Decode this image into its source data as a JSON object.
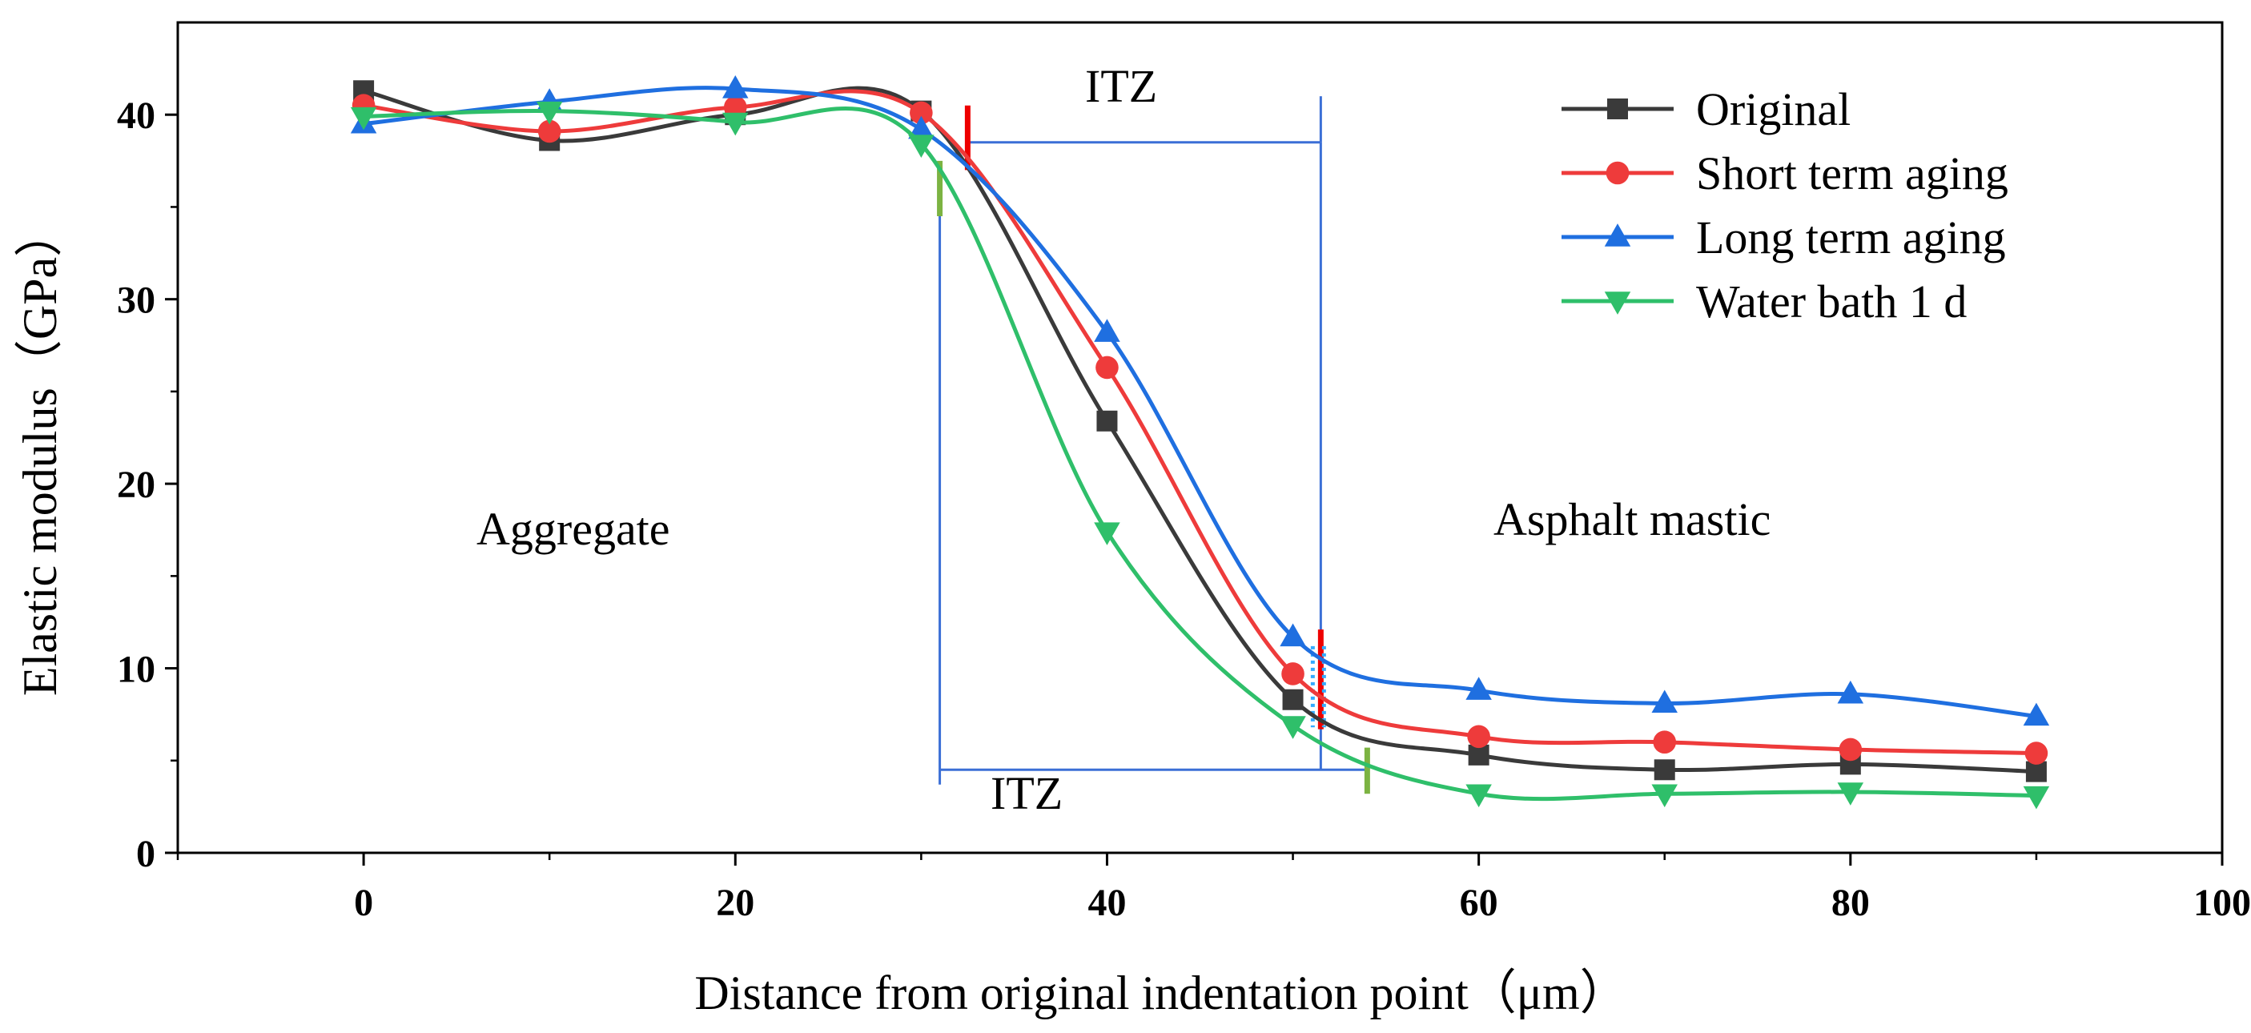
{
  "chart_data": {
    "type": "line",
    "title": "",
    "xlabel": "Distance from original indentation point（μm）",
    "ylabel": "Elastic modulus（GPa）",
    "xlim": [
      -10,
      100
    ],
    "ylim": [
      0,
      45
    ],
    "xticks": [
      0,
      20,
      40,
      60,
      80,
      100
    ],
    "yticks": [
      0,
      10,
      20,
      30,
      40
    ],
    "x": [
      0,
      10,
      20,
      30,
      40,
      50,
      60,
      70,
      80,
      90
    ],
    "series": [
      {
        "name": "Original",
        "color": "#3a3a3a",
        "marker": "square",
        "values": [
          41.3,
          38.6,
          40.0,
          40.2,
          23.4,
          8.3,
          5.3,
          4.5,
          4.8,
          4.4
        ]
      },
      {
        "name": "Short term aging",
        "color": "#ee3b3b",
        "marker": "circle",
        "values": [
          40.5,
          39.1,
          40.4,
          40.1,
          26.3,
          9.7,
          6.3,
          6.0,
          5.6,
          5.4
        ]
      },
      {
        "name": "Long term aging",
        "color": "#1f6fe0",
        "marker": "triangle-up",
        "values": [
          39.5,
          40.7,
          41.4,
          39.2,
          28.2,
          11.7,
          8.8,
          8.1,
          8.6,
          7.4
        ]
      },
      {
        "name": "Water bath 1 d",
        "color": "#2fbf6a",
        "marker": "triangle-down",
        "values": [
          39.9,
          40.2,
          39.6,
          38.4,
          17.4,
          6.9,
          3.2,
          3.2,
          3.3,
          3.1
        ]
      }
    ],
    "legend": "top-right",
    "annotations": {
      "itz_top_label": "ITZ",
      "itz_bottom_label": "ITZ",
      "left_region": "Aggregate",
      "right_region": "Asphalt mastic",
      "itz_upper_box": {
        "x_start": 32.5,
        "x_end": 51.5,
        "y": 38.5
      },
      "itz_lower_box": {
        "x_start": 31,
        "x_end": 54,
        "y": 4.5
      },
      "markers": [
        {
          "series": "Short term aging",
          "x": 32.5,
          "y_low": 37,
          "y_high": 40.5,
          "color": "#ee0000"
        },
        {
          "series": "Short term aging",
          "x": 51.5,
          "y_low": 6.7,
          "y_high": 12.1,
          "color": "#ee0000"
        },
        {
          "series": "Water bath 1 d",
          "x": 31,
          "y_low": 34.5,
          "y_high": 37.5,
          "color": "#7cb342"
        },
        {
          "series": "Water bath 1 d",
          "x": 54,
          "y_low": 3.2,
          "y_high": 5.7,
          "color": "#7cb342"
        },
        {
          "series": "Long term aging",
          "x": 51.5,
          "y_low": 6.8,
          "y_high": 11.2,
          "color": "#33aaff",
          "dotted": true
        }
      ]
    }
  }
}
